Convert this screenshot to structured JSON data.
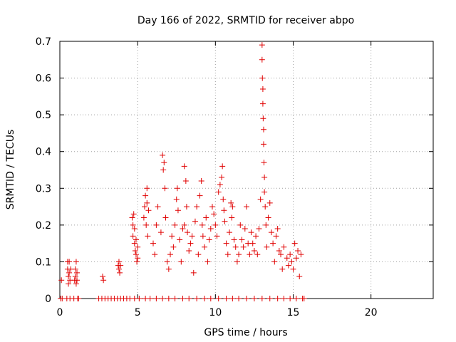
{
  "chart_data": {
    "type": "scatter",
    "title": "Day 166 of 2022, SRMTID for receiver abpo",
    "xlabel": "GPS time / hours",
    "ylabel": "SRMTID / TECUs",
    "xlim": [
      0,
      24
    ],
    "ylim": [
      0,
      0.7
    ],
    "xticks": [
      0,
      5,
      10,
      15,
      20
    ],
    "yticks": [
      0,
      0.1,
      0.2,
      0.3,
      0.4,
      0.5,
      0.6,
      0.7
    ],
    "xtick_labels": [
      "0",
      "5",
      "10",
      "15",
      "20"
    ],
    "ytick_labels": [
      "0",
      "0.1",
      "0.2",
      "0.3",
      "0.4",
      "0.5",
      "0.6",
      "0.7"
    ],
    "grid": true,
    "marker": "+",
    "color": "#e00000",
    "series": [
      {
        "name": "SRMTID",
        "points": [
          [
            0.05,
            0.0
          ],
          [
            0.1,
            0.05
          ],
          [
            0.15,
            0.0
          ],
          [
            0.45,
            0.0
          ],
          [
            0.5,
            0.1
          ],
          [
            0.5,
            0.08
          ],
          [
            0.55,
            0.06
          ],
          [
            0.55,
            0.04
          ],
          [
            0.6,
            0.1
          ],
          [
            0.6,
            0.07
          ],
          [
            0.65,
            0.05
          ],
          [
            0.65,
            0.0
          ],
          [
            0.7,
            0.08
          ],
          [
            0.9,
            0.0
          ],
          [
            0.95,
            0.05
          ],
          [
            1.0,
            0.08
          ],
          [
            1.0,
            0.06
          ],
          [
            1.05,
            0.1
          ],
          [
            1.05,
            0.04
          ],
          [
            1.1,
            0.07
          ],
          [
            1.1,
            0.05
          ],
          [
            1.15,
            0.0
          ],
          [
            1.2,
            0.0
          ],
          [
            2.5,
            0.0
          ],
          [
            2.7,
            0.0
          ],
          [
            2.75,
            0.06
          ],
          [
            2.8,
            0.05
          ],
          [
            2.9,
            0.0
          ],
          [
            3.1,
            0.0
          ],
          [
            3.3,
            0.0
          ],
          [
            3.5,
            0.0
          ],
          [
            3.7,
            0.0
          ],
          [
            3.75,
            0.09
          ],
          [
            3.8,
            0.08
          ],
          [
            3.8,
            0.1
          ],
          [
            3.85,
            0.07
          ],
          [
            3.9,
            0.09
          ],
          [
            3.9,
            0.0
          ],
          [
            4.1,
            0.0
          ],
          [
            4.3,
            0.0
          ],
          [
            4.5,
            0.0
          ],
          [
            4.65,
            0.22
          ],
          [
            4.7,
            0.2
          ],
          [
            4.7,
            0.17
          ],
          [
            4.75,
            0.23
          ],
          [
            4.8,
            0.15
          ],
          [
            4.8,
            0.19
          ],
          [
            4.85,
            0.13
          ],
          [
            4.9,
            0.12
          ],
          [
            4.9,
            0.16
          ],
          [
            4.95,
            0.1
          ],
          [
            5.0,
            0.14
          ],
          [
            5.0,
            0.11
          ],
          [
            4.8,
            0.0
          ],
          [
            5.1,
            0.0
          ],
          [
            5.4,
            0.22
          ],
          [
            5.45,
            0.25
          ],
          [
            5.5,
            0.28
          ],
          [
            5.55,
            0.2
          ],
          [
            5.6,
            0.3
          ],
          [
            5.6,
            0.26
          ],
          [
            5.65,
            0.17
          ],
          [
            5.7,
            0.24
          ],
          [
            5.5,
            0.0
          ],
          [
            5.8,
            0.0
          ],
          [
            6.0,
            0.15
          ],
          [
            6.1,
            0.12
          ],
          [
            6.2,
            0.2
          ],
          [
            6.3,
            0.25
          ],
          [
            6.5,
            0.18
          ],
          [
            6.6,
            0.39
          ],
          [
            6.65,
            0.35
          ],
          [
            6.7,
            0.37
          ],
          [
            6.75,
            0.3
          ],
          [
            6.8,
            0.22
          ],
          [
            6.9,
            0.1
          ],
          [
            6.2,
            0.0
          ],
          [
            6.6,
            0.0
          ],
          [
            7.0,
            0.08
          ],
          [
            7.1,
            0.12
          ],
          [
            7.2,
            0.17
          ],
          [
            7.3,
            0.14
          ],
          [
            7.4,
            0.2
          ],
          [
            7.5,
            0.27
          ],
          [
            7.55,
            0.3
          ],
          [
            7.6,
            0.24
          ],
          [
            7.7,
            0.16
          ],
          [
            7.8,
            0.1
          ],
          [
            7.0,
            0.0
          ],
          [
            7.4,
            0.0
          ],
          [
            7.9,
            0.19
          ],
          [
            8.0,
            0.2
          ],
          [
            8.0,
            0.36
          ],
          [
            8.1,
            0.32
          ],
          [
            8.15,
            0.25
          ],
          [
            8.2,
            0.18
          ],
          [
            8.3,
            0.13
          ],
          [
            8.4,
            0.15
          ],
          [
            8.5,
            0.17
          ],
          [
            8.6,
            0.07
          ],
          [
            8.7,
            0.21
          ],
          [
            7.9,
            0.0
          ],
          [
            8.3,
            0.0
          ],
          [
            8.8,
            0.25
          ],
          [
            8.9,
            0.12
          ],
          [
            9.0,
            0.28
          ],
          [
            9.1,
            0.32
          ],
          [
            9.15,
            0.2
          ],
          [
            9.2,
            0.17
          ],
          [
            9.3,
            0.14
          ],
          [
            9.4,
            0.22
          ],
          [
            9.5,
            0.1
          ],
          [
            9.6,
            0.16
          ],
          [
            9.7,
            0.19
          ],
          [
            9.8,
            0.25
          ],
          [
            9.9,
            0.23
          ],
          [
            8.8,
            0.0
          ],
          [
            9.3,
            0.0
          ],
          [
            9.7,
            0.0
          ],
          [
            10.0,
            0.2
          ],
          [
            10.1,
            0.17
          ],
          [
            10.2,
            0.29
          ],
          [
            10.3,
            0.31
          ],
          [
            10.4,
            0.33
          ],
          [
            10.45,
            0.36
          ],
          [
            10.5,
            0.27
          ],
          [
            10.55,
            0.24
          ],
          [
            10.6,
            0.21
          ],
          [
            10.7,
            0.15
          ],
          [
            10.8,
            0.12
          ],
          [
            10.9,
            0.18
          ],
          [
            11.0,
            0.26
          ],
          [
            11.05,
            0.22
          ],
          [
            11.1,
            0.25
          ],
          [
            11.2,
            0.16
          ],
          [
            10.2,
            0.0
          ],
          [
            10.7,
            0.0
          ],
          [
            11.1,
            0.0
          ],
          [
            11.3,
            0.14
          ],
          [
            11.4,
            0.1
          ],
          [
            11.5,
            0.12
          ],
          [
            11.6,
            0.2
          ],
          [
            11.7,
            0.16
          ],
          [
            11.8,
            0.14
          ],
          [
            11.9,
            0.19
          ],
          [
            12.0,
            0.25
          ],
          [
            12.1,
            0.15
          ],
          [
            12.2,
            0.12
          ],
          [
            11.5,
            0.0
          ],
          [
            12.0,
            0.0
          ],
          [
            12.3,
            0.18
          ],
          [
            12.4,
            0.15
          ],
          [
            12.5,
            0.13
          ],
          [
            12.6,
            0.17
          ],
          [
            12.7,
            0.12
          ],
          [
            12.8,
            0.19
          ],
          [
            12.9,
            0.27
          ],
          [
            13.0,
            0.69
          ],
          [
            13.0,
            0.65
          ],
          [
            13.02,
            0.6
          ],
          [
            13.05,
            0.57
          ],
          [
            13.05,
            0.53
          ],
          [
            13.07,
            0.49
          ],
          [
            13.1,
            0.46
          ],
          [
            13.1,
            0.42
          ],
          [
            13.12,
            0.37
          ],
          [
            13.15,
            0.33
          ],
          [
            13.15,
            0.29
          ],
          [
            13.2,
            0.25
          ],
          [
            13.25,
            0.2
          ],
          [
            13.3,
            0.14
          ],
          [
            12.5,
            0.0
          ],
          [
            13.0,
            0.0
          ],
          [
            13.4,
            0.22
          ],
          [
            13.5,
            0.26
          ],
          [
            13.6,
            0.18
          ],
          [
            13.7,
            0.15
          ],
          [
            13.8,
            0.1
          ],
          [
            13.9,
            0.17
          ],
          [
            14.0,
            0.19
          ],
          [
            14.1,
            0.13
          ],
          [
            14.2,
            0.12
          ],
          [
            14.3,
            0.08
          ],
          [
            14.4,
            0.14
          ],
          [
            13.5,
            0.0
          ],
          [
            14.0,
            0.0
          ],
          [
            14.4,
            0.0
          ],
          [
            14.6,
            0.11
          ],
          [
            14.7,
            0.09
          ],
          [
            14.8,
            0.12
          ],
          [
            14.9,
            0.1
          ],
          [
            15.0,
            0.08
          ],
          [
            15.1,
            0.15
          ],
          [
            15.2,
            0.11
          ],
          [
            15.3,
            0.13
          ],
          [
            15.4,
            0.06
          ],
          [
            15.5,
            0.12
          ],
          [
            14.8,
            0.0
          ],
          [
            15.2,
            0.0
          ],
          [
            15.6,
            0.0
          ],
          [
            15.7,
            0.0
          ]
        ]
      }
    ]
  }
}
